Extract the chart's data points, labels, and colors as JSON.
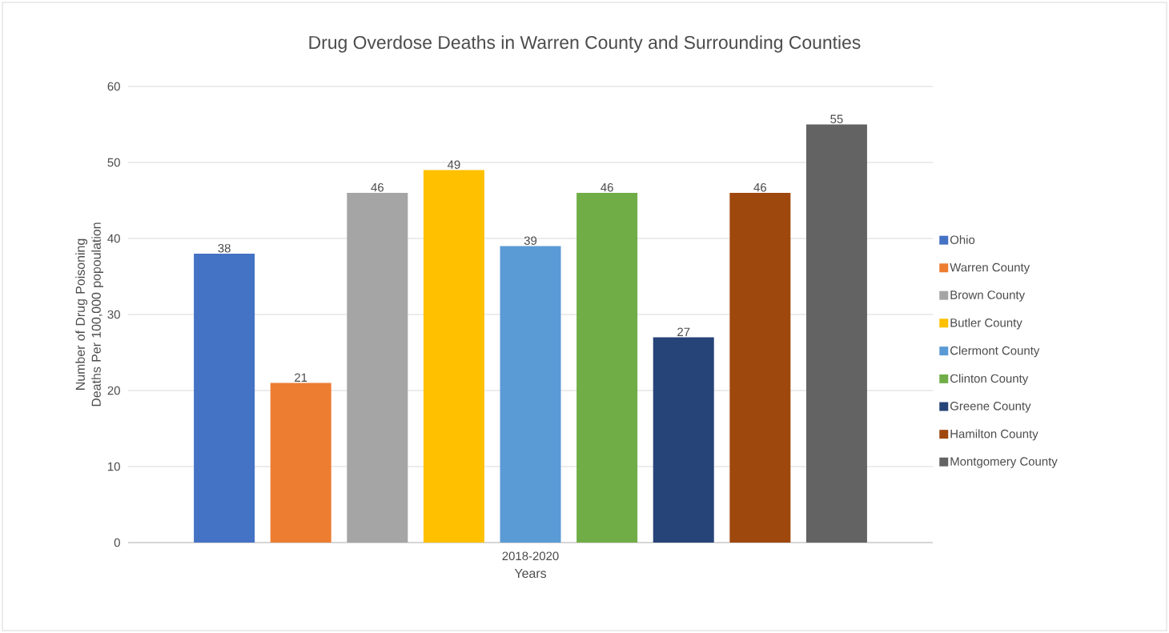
{
  "chart_data": {
    "type": "bar",
    "title": "Drug Overdose Deaths in Warren County and Surrounding Counties",
    "xlabel": "Years",
    "ylabel": "Number of Drug Poisoning Deaths Per 100,000 popoulation",
    "categories": [
      "2018-2020"
    ],
    "series": [
      {
        "name": "Ohio",
        "color": "#4472c4",
        "values": [
          38
        ]
      },
      {
        "name": "Warren County",
        "color": "#ed7d31",
        "values": [
          21
        ]
      },
      {
        "name": "Brown County",
        "color": "#a5a5a5",
        "values": [
          46
        ]
      },
      {
        "name": "Butler County",
        "color": "#ffc000",
        "values": [
          49
        ]
      },
      {
        "name": "Clermont County",
        "color": "#5b9bd5",
        "values": [
          39
        ]
      },
      {
        "name": "Clinton County",
        "color": "#70ad47",
        "values": [
          46
        ]
      },
      {
        "name": "Greene County",
        "color": "#264478",
        "values": [
          27
        ]
      },
      {
        "name": "Hamilton County",
        "color": "#9e480e",
        "values": [
          46
        ]
      },
      {
        "name": "Montgomery County",
        "color": "#636363",
        "values": [
          55
        ]
      }
    ],
    "ylim": [
      0,
      60
    ],
    "yticks": [
      0,
      10,
      20,
      30,
      40,
      50,
      60
    ],
    "grid": "y",
    "legend": "right",
    "data_labels": true
  }
}
